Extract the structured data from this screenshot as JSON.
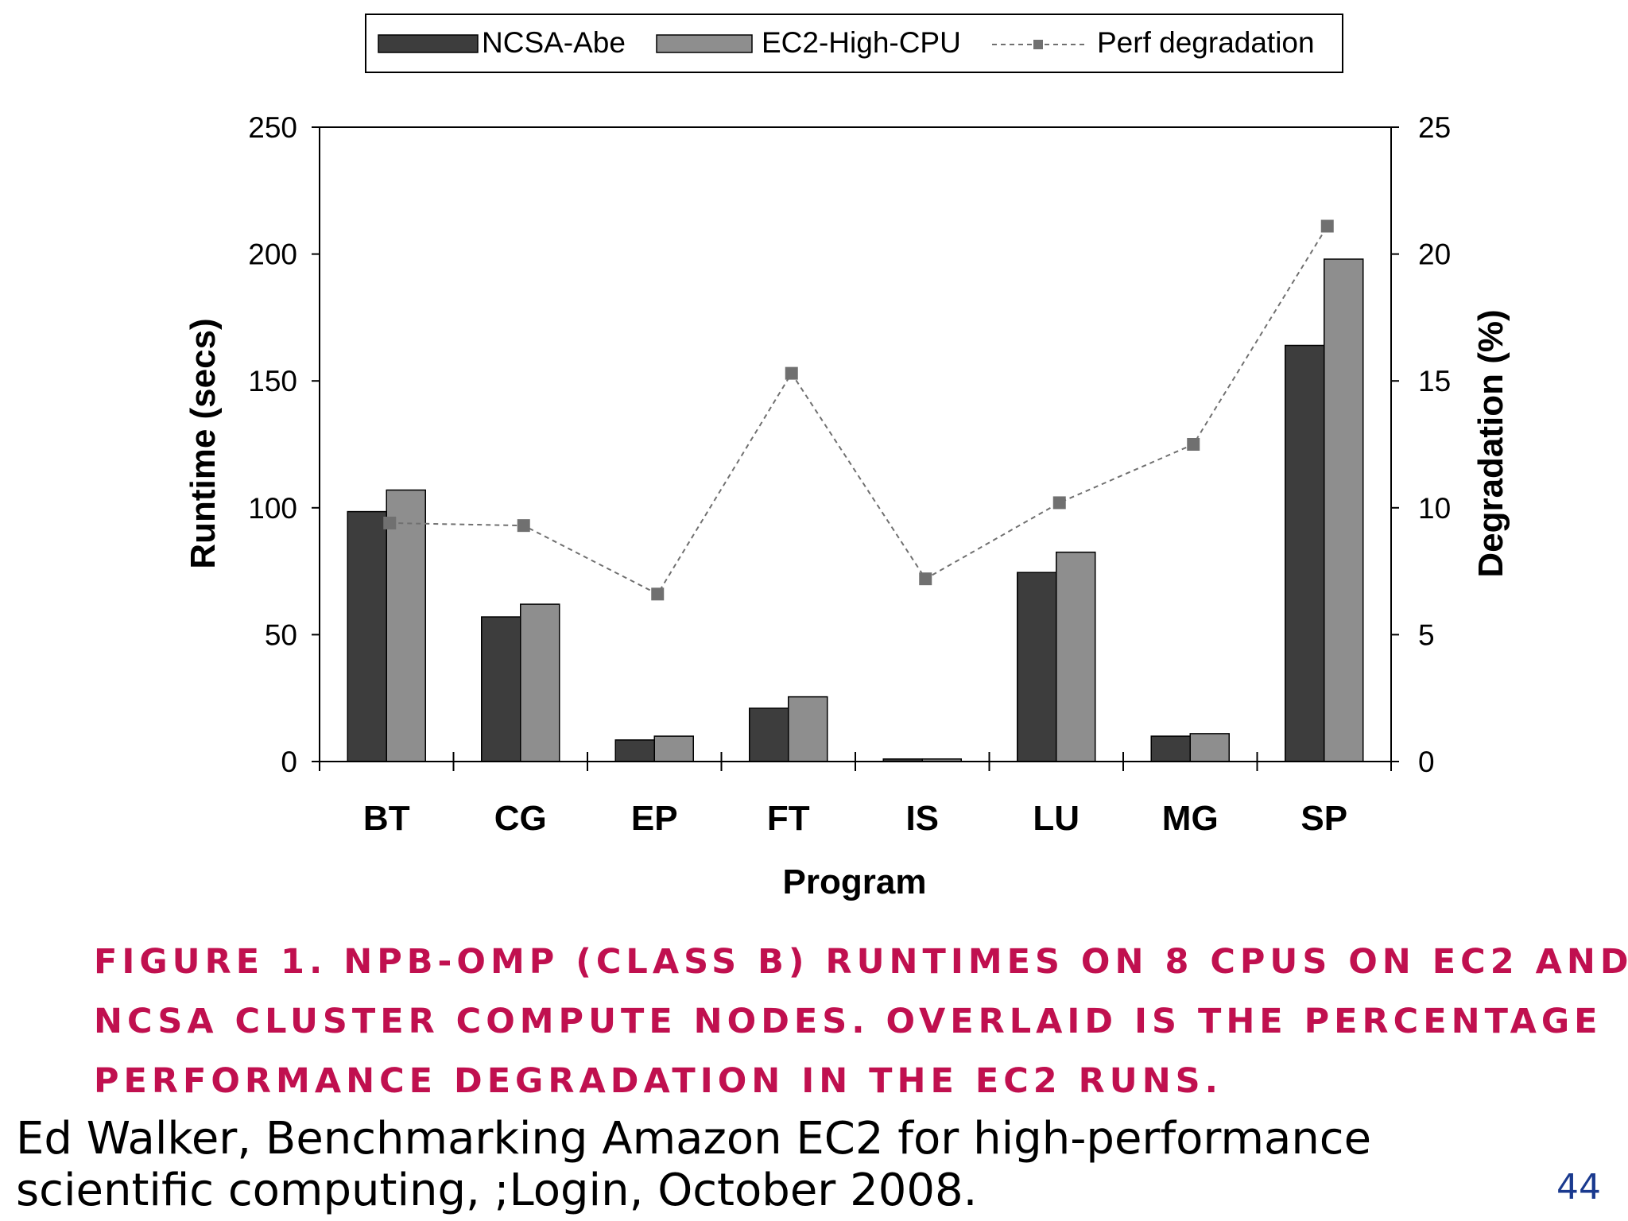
{
  "chart_data": {
    "type": "bar",
    "categories": [
      "BT",
      "CG",
      "EP",
      "FT",
      "IS",
      "LU",
      "MG",
      "SP"
    ],
    "series": [
      {
        "name": "NCSA-Abe",
        "kind": "bar",
        "axis": "left",
        "color": "#3d3d3d",
        "values": [
          98.5,
          57,
          8.5,
          21,
          1,
          74.5,
          10,
          164
        ]
      },
      {
        "name": "EC2-High-CPU",
        "kind": "bar",
        "axis": "left",
        "color": "#8e8e8e",
        "values": [
          107,
          62,
          10,
          25.5,
          1,
          82.5,
          11,
          198
        ]
      }
    ],
    "line_series": {
      "name": "Perf degradation",
      "kind": "line",
      "axis": "right",
      "color": "#707070",
      "style": "dashed",
      "values": [
        9.4,
        9.3,
        6.6,
        15.3,
        7.2,
        10.2,
        12.5,
        21.1
      ]
    },
    "xlabel": "Program",
    "ylabel": "Runtime (secs)",
    "y2label": "Degradation (%)",
    "ylim": [
      0,
      250
    ],
    "y2lim": [
      0,
      25
    ],
    "yticks": [
      "0",
      "50",
      "100",
      "150",
      "200",
      "250"
    ],
    "y2ticks": [
      "0",
      "5",
      "10",
      "15",
      "20",
      "25"
    ],
    "legend_position": "top-center"
  },
  "caption": {
    "lines": [
      "FIGURE 1. NPB-OMP (CLASS B) RUNTIMES ON 8 CPUS ON EC2 AND",
      "NCSA CLUSTER COMPUTE NODES. OVERLAID IS THE PERCENTAGE",
      "PERFORMANCE DEGRADATION IN THE EC2 RUNS."
    ]
  },
  "citation": {
    "lines": [
      "Ed Walker, Benchmarking Amazon EC2 for high-performance",
      "scientific computing, ;Login, October 2008."
    ]
  },
  "slide_number": "44"
}
